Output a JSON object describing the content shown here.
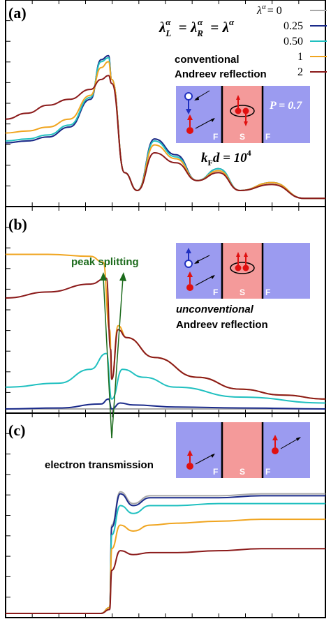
{
  "chart_data": [
    {
      "panel": "(a)",
      "type": "line",
      "x_range": [
        -1.0,
        1.0
      ],
      "y_range": [
        0,
        1
      ],
      "series": [
        {
          "name": "0",
          "color": "#a9a9a9",
          "x": [
            -1.0,
            -0.8,
            -0.6,
            -0.4,
            -0.2,
            -0.1,
            -0.03,
            0.0,
            0.06,
            0.12,
            0.2,
            0.3,
            0.4,
            0.5,
            0.6,
            0.75,
            0.9,
            1.0
          ],
          "y": [
            0.3,
            0.31,
            0.33,
            0.38,
            0.52,
            0.72,
            0.74,
            0.62,
            0.15,
            0.06,
            0.32,
            0.24,
            0.11,
            0.17,
            0.06,
            0.1,
            0.02,
            0.02
          ]
        },
        {
          "name": "0.25",
          "color": "#1a2a8a",
          "x": [
            -1.0,
            -0.8,
            -0.6,
            -0.4,
            -0.2,
            -0.1,
            -0.03,
            0.0,
            0.06,
            0.12,
            0.2,
            0.3,
            0.4,
            0.5,
            0.6,
            0.75,
            0.9,
            1.0
          ],
          "y": [
            0.3,
            0.31,
            0.33,
            0.38,
            0.52,
            0.72,
            0.74,
            0.62,
            0.15,
            0.06,
            0.32,
            0.24,
            0.11,
            0.17,
            0.06,
            0.1,
            0.02,
            0.02
          ]
        },
        {
          "name": "0.50",
          "color": "#20c0c0",
          "x": [
            -1.0,
            -0.8,
            -0.6,
            -0.4,
            -0.2,
            -0.1,
            -0.03,
            0.0,
            0.06,
            0.12,
            0.2,
            0.3,
            0.4,
            0.5,
            0.6,
            0.75,
            0.9,
            1.0
          ],
          "y": [
            0.31,
            0.32,
            0.34,
            0.39,
            0.53,
            0.71,
            0.73,
            0.62,
            0.15,
            0.06,
            0.31,
            0.23,
            0.11,
            0.17,
            0.06,
            0.1,
            0.02,
            0.02
          ]
        },
        {
          "name": "1",
          "color": "#f0a520",
          "x": [
            -1.0,
            -0.8,
            -0.6,
            -0.4,
            -0.2,
            -0.1,
            -0.03,
            0.0,
            0.06,
            0.12,
            0.2,
            0.3,
            0.4,
            0.5,
            0.6,
            0.75,
            0.9,
            1.0
          ],
          "y": [
            0.35,
            0.36,
            0.38,
            0.42,
            0.54,
            0.68,
            0.71,
            0.62,
            0.15,
            0.06,
            0.29,
            0.22,
            0.11,
            0.16,
            0.06,
            0.1,
            0.02,
            0.02
          ]
        },
        {
          "name": "2",
          "color": "#8b1a1a",
          "x": [
            -1.0,
            -0.8,
            -0.6,
            -0.4,
            -0.2,
            -0.1,
            -0.03,
            0.0,
            0.06,
            0.12,
            0.2,
            0.3,
            0.4,
            0.5,
            0.6,
            0.75,
            0.9,
            1.0
          ],
          "y": [
            0.42,
            0.45,
            0.49,
            0.52,
            0.57,
            0.62,
            0.64,
            0.6,
            0.15,
            0.06,
            0.25,
            0.2,
            0.11,
            0.15,
            0.06,
            0.09,
            0.02,
            0.02
          ]
        }
      ]
    },
    {
      "panel": "(b)",
      "type": "line",
      "x_range": [
        -1.0,
        1.0
      ],
      "y_range": [
        0,
        1
      ],
      "series": [
        {
          "name": "0",
          "color": "#a9a9a9",
          "x": [
            -1.0,
            -0.5,
            -0.1,
            0.0,
            0.1,
            0.3,
            0.6,
            1.0
          ],
          "y": [
            0.0,
            0.0,
            0.0,
            0.0,
            0.0,
            0.0,
            0.0,
            0.0
          ]
        },
        {
          "name": "0.25",
          "color": "#1a2a8a",
          "x": [
            -1.0,
            -0.5,
            -0.1,
            -0.03,
            0.0,
            0.04,
            0.1,
            0.3,
            0.6,
            1.0
          ],
          "y": [
            0.0,
            0.005,
            0.025,
            0.05,
            0.0,
            0.03,
            0.02,
            0.01,
            0.005,
            0.0
          ]
        },
        {
          "name": "0.50",
          "color": "#20c0c0",
          "x": [
            -1.0,
            -0.5,
            -0.2,
            -0.05,
            0.0,
            0.05,
            0.15,
            0.3,
            0.6,
            1.0
          ],
          "y": [
            0.11,
            0.13,
            0.2,
            0.28,
            0.05,
            0.2,
            0.16,
            0.11,
            0.06,
            0.03
          ]
        },
        {
          "name": "1",
          "color": "#f0a520",
          "x": [
            -1.0,
            -0.6,
            -0.2,
            -0.08,
            -0.02,
            0.0,
            0.03,
            0.07,
            0.2,
            0.4,
            0.6,
            0.8,
            1.0
          ],
          "y": [
            0.78,
            0.78,
            0.77,
            0.74,
            0.4,
            0.15,
            0.42,
            0.36,
            0.26,
            0.16,
            0.1,
            0.07,
            0.05
          ]
        },
        {
          "name": "2",
          "color": "#8b1a1a",
          "x": [
            -1.0,
            -0.6,
            -0.2,
            -0.05,
            -0.01,
            0.0,
            0.03,
            0.07,
            0.2,
            0.4,
            0.6,
            0.8,
            1.0
          ],
          "y": [
            0.56,
            0.59,
            0.63,
            0.66,
            0.3,
            0.15,
            0.4,
            0.36,
            0.26,
            0.16,
            0.1,
            0.07,
            0.05
          ]
        }
      ]
    },
    {
      "panel": "(c)",
      "type": "line",
      "x_range": [
        -1.0,
        1.0
      ],
      "y_range": [
        0,
        1
      ],
      "series": [
        {
          "name": "0",
          "color": "#a9a9a9",
          "x": [
            -1.0,
            -0.1,
            -0.02,
            0.0,
            0.04,
            0.1,
            0.18,
            0.3,
            0.5,
            0.7,
            1.0
          ],
          "y": [
            0.0,
            0.0,
            0.03,
            0.45,
            0.62,
            0.56,
            0.6,
            0.6,
            0.6,
            0.61,
            0.61
          ]
        },
        {
          "name": "0.25",
          "color": "#1a2a8a",
          "x": [
            -1.0,
            -0.1,
            -0.02,
            0.0,
            0.04,
            0.1,
            0.18,
            0.3,
            0.5,
            0.7,
            1.0
          ],
          "y": [
            0.0,
            0.0,
            0.03,
            0.44,
            0.61,
            0.55,
            0.59,
            0.59,
            0.59,
            0.6,
            0.6
          ]
        },
        {
          "name": "0.50",
          "color": "#20c0c0",
          "x": [
            -1.0,
            -0.1,
            -0.02,
            0.0,
            0.04,
            0.1,
            0.18,
            0.3,
            0.5,
            0.7,
            1.0
          ],
          "y": [
            0.0,
            0.0,
            0.03,
            0.4,
            0.55,
            0.51,
            0.55,
            0.55,
            0.56,
            0.56,
            0.56
          ]
        },
        {
          "name": "1",
          "color": "#f0a520",
          "x": [
            -1.0,
            -0.1,
            -0.02,
            0.0,
            0.04,
            0.1,
            0.18,
            0.3,
            0.5,
            0.7,
            1.0
          ],
          "y": [
            0.0,
            0.0,
            0.03,
            0.33,
            0.45,
            0.42,
            0.45,
            0.46,
            0.47,
            0.48,
            0.48
          ]
        },
        {
          "name": "2",
          "color": "#8b1a1a",
          "x": [
            -1.0,
            -0.1,
            -0.02,
            0.0,
            0.04,
            0.1,
            0.18,
            0.3,
            0.5,
            0.7,
            1.0
          ],
          "y": [
            0.0,
            0.0,
            0.02,
            0.22,
            0.32,
            0.3,
            0.31,
            0.31,
            0.32,
            0.33,
            0.33
          ]
        }
      ]
    }
  ],
  "legend": {
    "header": "λ",
    "header_sup": "α",
    "header_value": "= 0",
    "items": [
      "0.25",
      "0.50",
      "1",
      "2"
    ]
  },
  "formula": {
    "lambda": "λ",
    "sub_L": "L",
    "sub_R": "R",
    "sup": "α",
    "eq": "="
  },
  "annotations": {
    "panel_a": "(a)",
    "panel_b": "(b)",
    "panel_c": "(c)",
    "conventional_1": "conventional",
    "conventional_2": "Andreev reflection",
    "P_label": "P = 0.7",
    "kfd_base": "k",
    "kfd_sub": "F",
    "kfd_rest": "d = 10",
    "kfd_exp": "4",
    "peak_splitting": "peak splitting",
    "unconventional_1": "unconventional",
    "unconventional_2": "Andreev reflection",
    "electron_transmission": "electron transmission",
    "F": "F",
    "S": "S"
  }
}
